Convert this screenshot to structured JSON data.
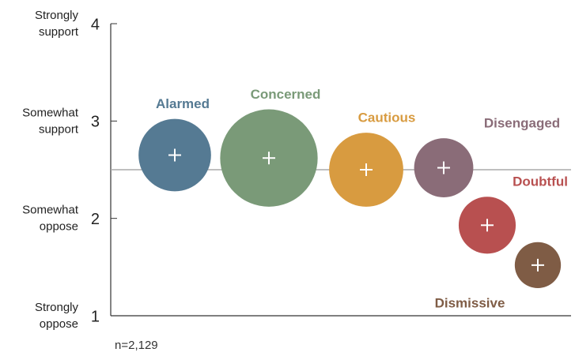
{
  "chart_data": {
    "type": "bubble",
    "categories": [
      "Alarmed",
      "Concerned",
      "Cautious",
      "Disengaged",
      "Doubtful",
      "Dismissive"
    ],
    "values": [
      2.65,
      2.62,
      2.5,
      2.52,
      1.93,
      1.52
    ],
    "sizes": [
      21,
      38,
      22,
      14,
      13,
      8.5
    ],
    "colors": [
      "#557a93",
      "#7a9a78",
      "#d89b40",
      "#8a6c78",
      "#b85050",
      "#7f5c45"
    ],
    "ylim": [
      1,
      4
    ],
    "yticks": [
      1,
      2,
      3,
      4
    ],
    "ytick_descriptions": [
      [
        "Strongly",
        "oppose"
      ],
      [
        "Somewhat",
        "oppose"
      ],
      [
        "Somewhat",
        "support"
      ],
      [
        "Strongly",
        "support"
      ]
    ],
    "reference_line": 2.5,
    "note": "n=2,129"
  }
}
